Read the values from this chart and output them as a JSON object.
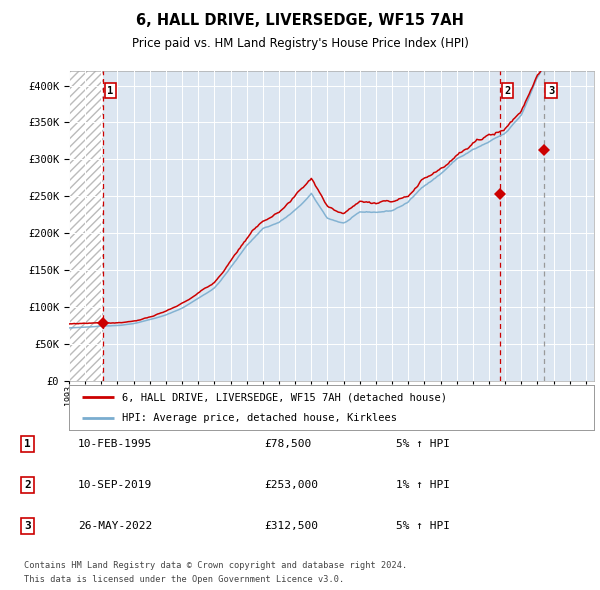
{
  "title": "6, HALL DRIVE, LIVERSEDGE, WF15 7AH",
  "subtitle": "Price paid vs. HM Land Registry's House Price Index (HPI)",
  "legend_label_red": "6, HALL DRIVE, LIVERSEDGE, WF15 7AH (detached house)",
  "legend_label_blue": "HPI: Average price, detached house, Kirklees",
  "table_rows": [
    {
      "num": "1",
      "date": "10-FEB-1995",
      "price": "£78,500",
      "change": "5% ↑ HPI"
    },
    {
      "num": "2",
      "date": "10-SEP-2019",
      "price": "£253,000",
      "change": "1% ↑ HPI"
    },
    {
      "num": "3",
      "date": "26-MAY-2022",
      "price": "£312,500",
      "change": "5% ↑ HPI"
    }
  ],
  "footnote1": "Contains HM Land Registry data © Crown copyright and database right 2024.",
  "footnote2": "This data is licensed under the Open Government Licence v3.0.",
  "ylim": [
    0,
    420000
  ],
  "yticks": [
    0,
    50000,
    100000,
    150000,
    200000,
    250000,
    300000,
    350000,
    400000
  ],
  "bg_color": "#dce6f1",
  "grid_color": "#ffffff",
  "red_color": "#cc0000",
  "blue_color": "#7aadcf",
  "transaction1_year": 1995.12,
  "transaction2_year": 2019.69,
  "transaction3_year": 2022.4,
  "transaction1_price": 78500,
  "transaction2_price": 253000,
  "transaction3_price": 312500,
  "xlim_min": 1993.0,
  "xlim_max": 2025.5
}
